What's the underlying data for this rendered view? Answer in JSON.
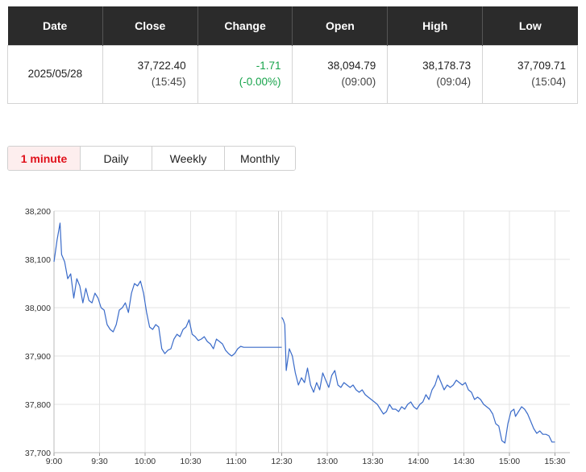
{
  "quote": {
    "headers": {
      "date": "Date",
      "close": "Close",
      "change": "Change",
      "open": "Open",
      "high": "High",
      "low": "Low"
    },
    "values": {
      "date": "2025/05/28",
      "close": "37,722.40",
      "close_time": "(15:45)",
      "change": "-1.71",
      "change_pct": "(-0.00%)",
      "open": "38,094.79",
      "open_time": "(09:00)",
      "high": "38,178.73",
      "high_time": "(09:04)",
      "low": "37,709.71",
      "low_time": "(15:04)"
    },
    "change_color": "#16a34a"
  },
  "tabs": [
    {
      "label": "1 minute",
      "active": true
    },
    {
      "label": "Daily",
      "active": false
    },
    {
      "label": "Weekly",
      "active": false
    },
    {
      "label": "Monthly",
      "active": false
    }
  ],
  "colors": {
    "accent": "#e0101a",
    "line": "#3a6bc9",
    "header_bg": "#2b2b2b"
  },
  "chart_data": {
    "type": "line",
    "title": "",
    "xlabel": "",
    "ylabel": "",
    "ylim": [
      37700,
      38200
    ],
    "yticks": [
      "38,200",
      "38,100",
      "38,000",
      "37,900",
      "37,800",
      "37,700"
    ],
    "xticks": [
      "9:00",
      "9:30",
      "10:00",
      "10:30",
      "11:00",
      "12:30",
      "13:00",
      "13:30",
      "14:00",
      "14:30",
      "15:00",
      "15:30"
    ],
    "grid": true,
    "series": [
      {
        "sessions": [
          {
            "x": [
              "9:00",
              "9:02",
              "9:04",
              "9:05",
              "9:07",
              "9:09",
              "9:11",
              "9:13",
              "9:15",
              "9:17",
              "9:19",
              "9:21",
              "9:23",
              "9:25",
              "9:27",
              "9:29",
              "9:31",
              "9:33",
              "9:35",
              "9:37",
              "9:39",
              "9:41",
              "9:43",
              "9:45",
              "9:47",
              "9:49",
              "9:51",
              "9:53",
              "9:55",
              "9:57",
              "9:59",
              "10:01",
              "10:03",
              "10:05",
              "10:07",
              "10:09",
              "10:11",
              "10:13",
              "10:15",
              "10:17",
              "10:19",
              "10:21",
              "10:23",
              "10:25",
              "10:27",
              "10:29",
              "10:31",
              "10:33",
              "10:35",
              "10:37",
              "10:39",
              "10:41",
              "10:43",
              "10:45",
              "10:47",
              "10:49",
              "10:51",
              "10:53",
              "10:55",
              "10:57",
              "10:59",
              "11:01",
              "11:03",
              "11:05",
              "11:07",
              "11:09",
              "11:11",
              "11:13",
              "11:15",
              "11:17",
              "11:19",
              "11:21",
              "11:23",
              "11:25",
              "11:27",
              "11:29",
              "11:30"
            ],
            "y": [
              38095,
              38140,
              38175,
              38110,
              38095,
              38060,
              38070,
              38020,
              38060,
              38045,
              38010,
              38040,
              38015,
              38010,
              38030,
              38020,
              38000,
              37995,
              37965,
              37955,
              37950,
              37965,
              37995,
              38000,
              38010,
              37990,
              38030,
              38050,
              38045,
              38055,
              38030,
              37990,
              37960,
              37955,
              37965,
              37960,
              37915,
              37905,
              37912,
              37915,
              37935,
              37945,
              37940,
              37955,
              37960,
              37975,
              37945,
              37940,
              37932,
              37935,
              37940,
              37930,
              37925,
              37915,
              37935,
              37930,
              37925,
              37912,
              37905,
              37900,
              37905,
              37915,
              37920,
              37918,
              37918,
              37918,
              37918,
              37918,
              37918,
              37918,
              37918,
              37918,
              37918,
              37918,
              37918,
              37918,
              37918
            ]
          },
          {
            "x": [
              "12:30",
              "12:31",
              "12:32",
              "12:33",
              "12:35",
              "12:37",
              "12:39",
              "12:41",
              "12:43",
              "12:45",
              "12:47",
              "12:49",
              "12:51",
              "12:53",
              "12:55",
              "12:57",
              "12:59",
              "13:01",
              "13:03",
              "13:05",
              "13:07",
              "13:09",
              "13:11",
              "13:13",
              "13:15",
              "13:17",
              "13:19",
              "13:21",
              "13:23",
              "13:25",
              "13:27",
              "13:29",
              "13:31",
              "13:33",
              "13:35",
              "13:37",
              "13:39",
              "13:41",
              "13:43",
              "13:45",
              "13:47",
              "13:49",
              "13:51",
              "13:53",
              "13:55",
              "13:57",
              "13:59",
              "14:01",
              "14:03",
              "14:05",
              "14:07",
              "14:09",
              "14:11",
              "14:13",
              "14:15",
              "14:17",
              "14:19",
              "14:21",
              "14:23",
              "14:25",
              "14:27",
              "14:29",
              "14:31",
              "14:33",
              "14:35",
              "14:37",
              "14:39",
              "14:41",
              "14:43",
              "14:45",
              "14:47",
              "14:49",
              "14:51",
              "14:53",
              "14:55",
              "14:57",
              "14:59",
              "15:01",
              "15:03",
              "15:04",
              "15:06",
              "15:08",
              "15:10",
              "15:12",
              "15:14",
              "15:16",
              "15:18",
              "15:20",
              "15:22",
              "15:24",
              "15:26",
              "15:28",
              "15:30"
            ],
            "y": [
              37980,
              37975,
              37965,
              37870,
              37915,
              37900,
              37865,
              37840,
              37855,
              37845,
              37875,
              37840,
              37825,
              37845,
              37830,
              37865,
              37850,
              37835,
              37860,
              37870,
              37840,
              37835,
              37845,
              37840,
              37835,
              37840,
              37830,
              37825,
              37830,
              37820,
              37815,
              37810,
              37805,
              37800,
              37790,
              37780,
              37785,
              37800,
              37790,
              37790,
              37785,
              37795,
              37790,
              37800,
              37805,
              37795,
              37790,
              37800,
              37805,
              37820,
              37810,
              37830,
              37840,
              37860,
              37845,
              37830,
              37840,
              37835,
              37840,
              37850,
              37845,
              37840,
              37845,
              37830,
              37825,
              37810,
              37815,
              37810,
              37800,
              37795,
              37790,
              37780,
              37760,
              37755,
              37725,
              37720,
              37760,
              37785,
              37790,
              37775,
              37785,
              37795,
              37790,
              37780,
              37765,
              37750,
              37740,
              37745,
              37738,
              37738,
              37735,
              37722,
              37722
            ]
          }
        ]
      }
    ]
  }
}
